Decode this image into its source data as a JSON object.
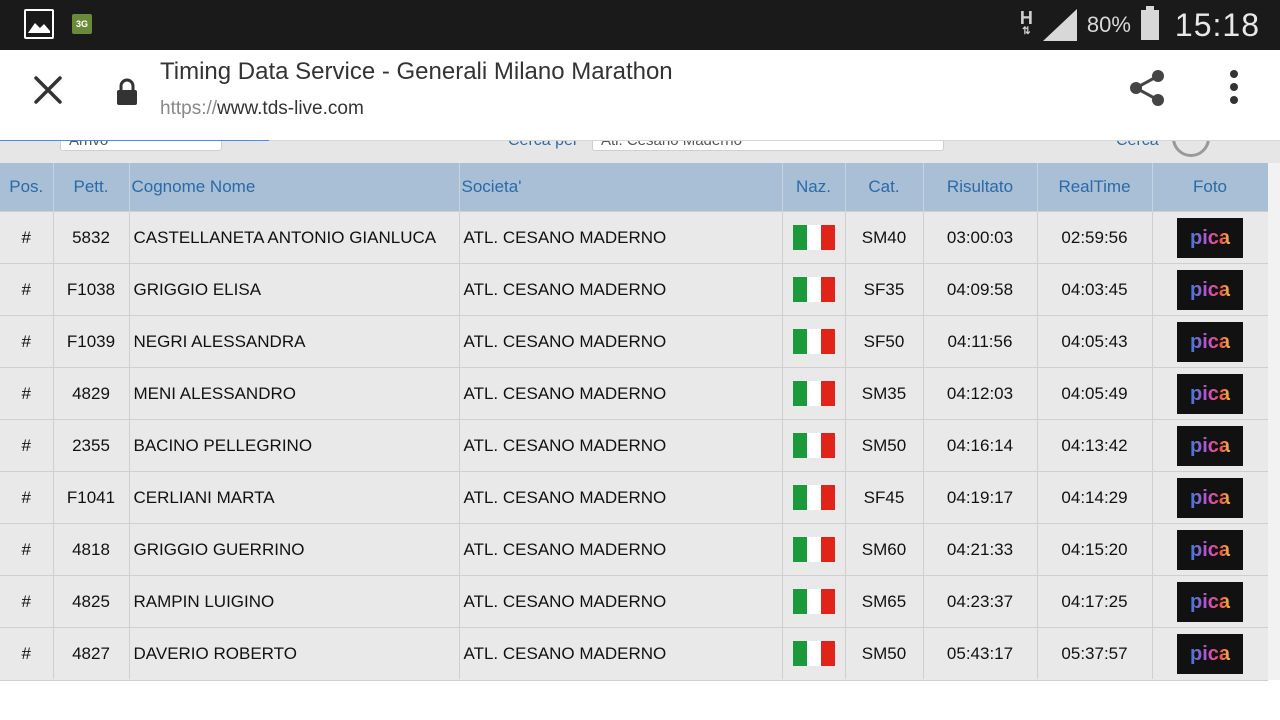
{
  "status_bar": {
    "network_type": "3G",
    "signal_label": "H",
    "battery_percent": "80%",
    "battery_level": 0.8,
    "clock": "15:18"
  },
  "browser": {
    "page_title": "Timing Data Service - Generali Milano Marathon",
    "url_scheme": "https://",
    "url_host": "www.tds-live.com",
    "progress": 0.21
  },
  "filters": {
    "field1_value": "Arrivo",
    "field2_label": "Cerca per",
    "field2_value": "Atl. Cesano Maderno",
    "field3_label": "Cerca"
  },
  "table": {
    "columns": [
      "Pos.",
      "Pett.",
      "Cognome Nome",
      "Societa'",
      "Naz.",
      "Cat.",
      "Risultato",
      "RealTime",
      "Foto"
    ],
    "flag_colors": [
      "#1a9a3a",
      "#ffffff",
      "#e0241a"
    ],
    "photo_brand": "pica",
    "rows": [
      {
        "pos": "#",
        "bib": "5832",
        "name": "CASTELLANETA ANTONIO GIANLUCA",
        "club": "ATL. CESANO MADERNO",
        "cat": "SM40",
        "result": "03:00:03",
        "realtime": "02:59:56"
      },
      {
        "pos": "#",
        "bib": "F1038",
        "name": "GRIGGIO ELISA",
        "club": "ATL. CESANO MADERNO",
        "cat": "SF35",
        "result": "04:09:58",
        "realtime": "04:03:45"
      },
      {
        "pos": "#",
        "bib": "F1039",
        "name": "NEGRI ALESSANDRA",
        "club": "ATL. CESANO MADERNO",
        "cat": "SF50",
        "result": "04:11:56",
        "realtime": "04:05:43"
      },
      {
        "pos": "#",
        "bib": "4829",
        "name": "MENI ALESSANDRO",
        "club": "ATL. CESANO MADERNO",
        "cat": "SM35",
        "result": "04:12:03",
        "realtime": "04:05:49"
      },
      {
        "pos": "#",
        "bib": "2355",
        "name": "BACINO PELLEGRINO",
        "club": "ATL. CESANO MADERNO",
        "cat": "SM50",
        "result": "04:16:14",
        "realtime": "04:13:42"
      },
      {
        "pos": "#",
        "bib": "F1041",
        "name": "CERLIANI MARTA",
        "club": "ATL. CESANO MADERNO",
        "cat": "SF45",
        "result": "04:19:17",
        "realtime": "04:14:29"
      },
      {
        "pos": "#",
        "bib": "4818",
        "name": "GRIGGIO GUERRINO",
        "club": "ATL. CESANO MADERNO",
        "cat": "SM60",
        "result": "04:21:33",
        "realtime": "04:15:20"
      },
      {
        "pos": "#",
        "bib": "4825",
        "name": "RAMPIN LUIGINO",
        "club": "ATL. CESANO MADERNO",
        "cat": "SM65",
        "result": "04:23:37",
        "realtime": "04:17:25"
      },
      {
        "pos": "#",
        "bib": "4827",
        "name": "DAVERIO ROBERTO",
        "club": "ATL. CESANO MADERNO",
        "cat": "SM50",
        "result": "05:43:17",
        "realtime": "05:37:57"
      }
    ]
  }
}
